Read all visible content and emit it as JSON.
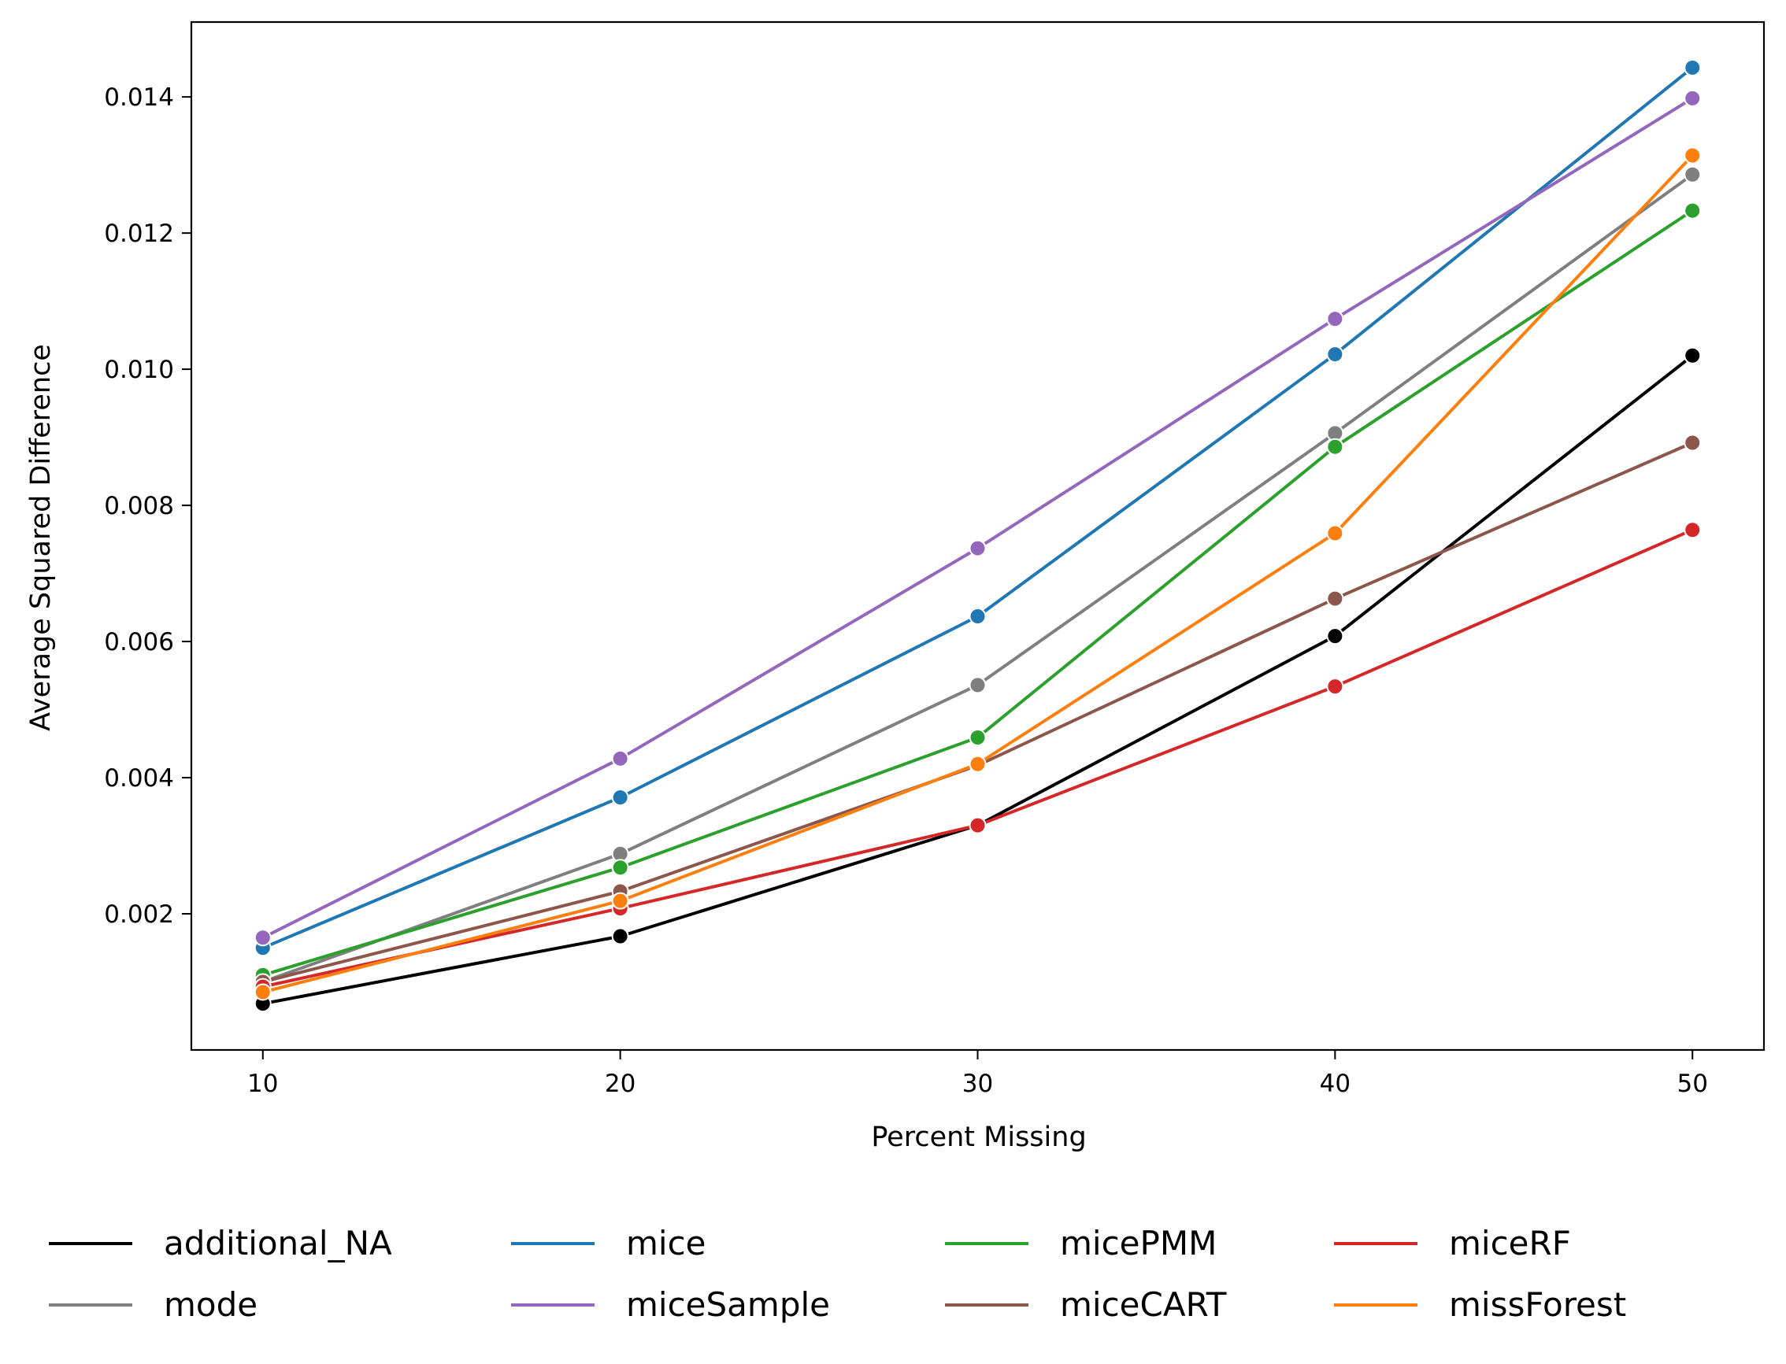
{
  "chart_data": {
    "type": "line",
    "title": "",
    "xlabel": "Percent Missing",
    "ylabel": "Average Squared Difference",
    "x": [
      10,
      20,
      30,
      40,
      50
    ],
    "xticks": [
      10,
      20,
      30,
      40,
      50
    ],
    "xtick_labels": [
      "10",
      "20",
      "30",
      "40",
      "50"
    ],
    "xlim": [
      8,
      52
    ],
    "yticks": [
      0.002,
      0.004,
      0.006,
      0.008,
      0.01,
      0.012,
      0.014
    ],
    "ytick_labels": [
      "0.002",
      "0.004",
      "0.006",
      "0.008",
      "0.010",
      "0.012",
      "0.014"
    ],
    "ylim": [
      0.0,
      0.0151
    ],
    "grid": false,
    "legend_position": "bottom",
    "series": [
      {
        "name": "additional_NA",
        "color": "#000000",
        "values": [
          0.00068,
          0.00167,
          0.0033,
          0.00608,
          0.0102
        ]
      },
      {
        "name": "mode",
        "color": "#7f7f7f",
        "values": [
          0.001,
          0.00288,
          0.00536,
          0.00906,
          0.01286
        ]
      },
      {
        "name": "mice",
        "color": "#1f77b4",
        "values": [
          0.0015,
          0.00371,
          0.00637,
          0.01022,
          0.01443
        ]
      },
      {
        "name": "miceSample",
        "color": "#9467bd",
        "values": [
          0.00165,
          0.00428,
          0.00737,
          0.01074,
          0.01398
        ]
      },
      {
        "name": "micePMM",
        "color": "#2ca02c",
        "values": [
          0.0011,
          0.00268,
          0.00459,
          0.00886,
          0.01233
        ]
      },
      {
        "name": "miceCART",
        "color": "#8c564b",
        "values": [
          0.001,
          0.00233,
          0.00418,
          0.00663,
          0.00892
        ]
      },
      {
        "name": "miceRF",
        "color": "#d62728",
        "values": [
          0.00093,
          0.00208,
          0.0033,
          0.00534,
          0.00764
        ]
      },
      {
        "name": "missForest",
        "color": "#ff7f0e",
        "values": [
          0.00085,
          0.00219,
          0.0042,
          0.00759,
          0.01314
        ]
      }
    ]
  }
}
